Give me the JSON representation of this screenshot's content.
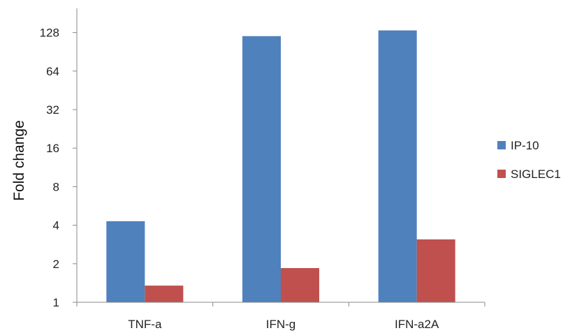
{
  "chart_data": {
    "type": "bar",
    "ylabel": "Fold change",
    "xlabel": "",
    "yscale": "log2",
    "ylim": [
      1,
      181
    ],
    "yticks": [
      "1",
      "2",
      "4",
      "8",
      "16",
      "32",
      "64",
      "128"
    ],
    "categories": [
      "TNF-a",
      "IFN-g",
      "IFN-a2A"
    ],
    "series": [
      {
        "name": "IP-10",
        "color": "#4F81BD",
        "values": [
          4.3,
          120,
          133
        ]
      },
      {
        "name": "SIGLEC1",
        "color": "#C0504D",
        "values": [
          1.35,
          1.85,
          3.1
        ]
      }
    ],
    "legend_position": "right",
    "grid": false
  }
}
